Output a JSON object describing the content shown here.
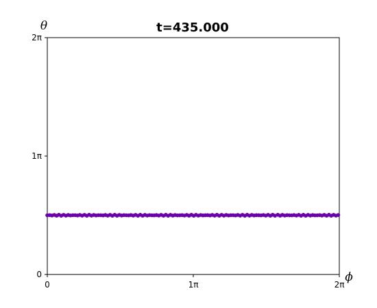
{
  "chart_data": {
    "type": "scatter",
    "title": "t=435.000",
    "xlabel": "ϕ",
    "ylabel": "θ",
    "xlim": [
      0,
      6.283185307
    ],
    "ylim": [
      0,
      6.283185307
    ],
    "x_ticks": [
      {
        "value": 0,
        "label": "0"
      },
      {
        "value": 3.141592654,
        "label": "1π"
      },
      {
        "value": 6.283185307,
        "label": "2π"
      }
    ],
    "y_ticks": [
      {
        "value": 0,
        "label": "0"
      },
      {
        "value": 3.141592654,
        "label": "1π"
      },
      {
        "value": 6.283185307,
        "label": "2π"
      }
    ],
    "grid": false,
    "marker_color": "#6a00a8",
    "series": [
      {
        "y_constant": 1.5708,
        "x_coverage": [
          [
            0,
            4.9
          ],
          [
            4.96,
            6.283185307
          ]
        ]
      }
    ]
  }
}
